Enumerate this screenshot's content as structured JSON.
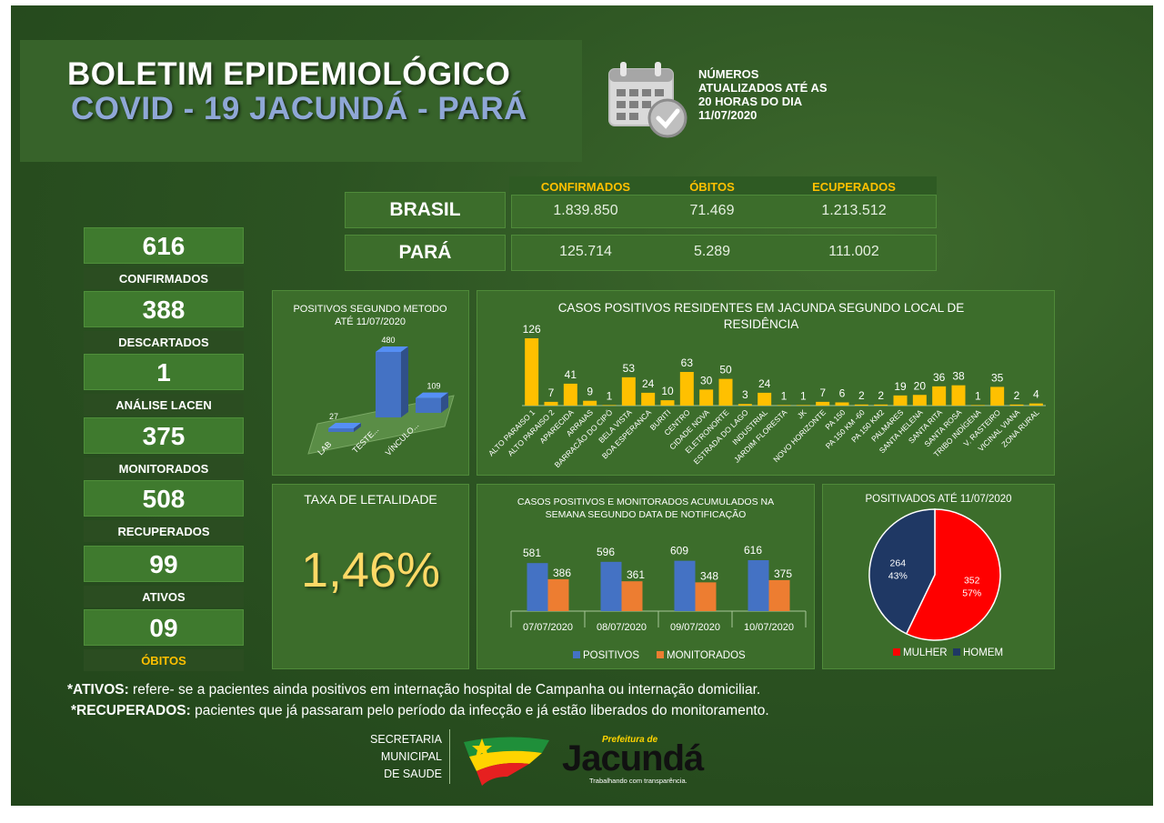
{
  "header": {
    "title_line1": "BOLETIM EPIDEMIOLÓGICO",
    "title_line2": "COVID - 19 JACUNDÁ - PARÁ",
    "calendar_icon": "calendar-check-icon",
    "update_note": [
      "NÚMEROS",
      "ATUALIZADOS ATÉ AS",
      "20 HORAS DO DIA",
      "11/07/2020"
    ]
  },
  "comparison": {
    "columns": [
      "CONFIRMADOS",
      "ÓBITOS",
      "ECUPERADOS"
    ],
    "rows": [
      {
        "name": "BRASIL",
        "values": [
          "1.839.850",
          "71.469",
          "1.213.512"
        ]
      },
      {
        "name": "PARÁ",
        "values": [
          "125.714",
          "5.289",
          "111.002"
        ]
      }
    ]
  },
  "stats": [
    {
      "value": "616",
      "label": "CONFIRMADOS"
    },
    {
      "value": "388",
      "label": "DESCARTADOS"
    },
    {
      "value": "1",
      "label": "ANÁLISE LACEN"
    },
    {
      "value": "375",
      "label": "MONITORADOS"
    },
    {
      "value": "508",
      "label": "RECUPERADOS"
    },
    {
      "value": "99",
      "label": "ATIVOS"
    },
    {
      "value": "09",
      "label": "ÓBITOS"
    }
  ],
  "lethality": {
    "title": "TAXA DE LETALIDADE",
    "value": "1,46%"
  },
  "chart_data": [
    {
      "type": "bar",
      "title": "POSITIVOS SEGUNDO METODO ATÉ 11/07/2020",
      "categories": [
        "LAB",
        "TESTE...",
        "VÍNCULO..."
      ],
      "values": [
        27,
        480,
        109
      ],
      "color": "#4472c4"
    },
    {
      "type": "bar",
      "title": "CASOS POSITIVOS RESIDENTES EM JACUNDA SEGUNDO LOCAL DE RESIDÊNCIA",
      "categories": [
        "ALTO PARAISO 1",
        "ALTO PARAISO 2",
        "APARECIDA",
        "ARRAIAS",
        "BARRACÃO DO CIPÓ",
        "BELA VISTA",
        "BOA ESPERANCA",
        "BURITI",
        "CENTRO",
        "CIDADE NOVA",
        "ELETRONORTE",
        "ESTRADA DO LAGO",
        "INDUSTRIAL",
        "JARDIM FLORESTA",
        "JK",
        "NOVO HORIZONTE",
        "PA 150",
        "PA 150 KM -60",
        "PA 150 KM2",
        "PALMARES",
        "SANTA HELENA",
        "SANTA RITA",
        "SANTA ROSA",
        "TRIBO INDÍGENA",
        "V. RASTEIRO",
        "VICINAL VIANA",
        "ZONA RURAL"
      ],
      "values": [
        126,
        7,
        41,
        9,
        1,
        53,
        24,
        10,
        63,
        30,
        50,
        3,
        24,
        1,
        1,
        7,
        6,
        2,
        2,
        19,
        20,
        36,
        38,
        1,
        35,
        2,
        4
      ],
      "color": "#ffc000"
    },
    {
      "type": "bar",
      "title": "CASOS POSITIVOS E MONITORADOS ACUMULADOS NA SEMANA SEGUNDO DATA DE NOTIFICAÇÃO",
      "categories": [
        "07/07/2020",
        "08/07/2020",
        "09/07/2020",
        "10/07/2020"
      ],
      "series": [
        {
          "name": "POSITIVOS",
          "values": [
            581,
            596,
            609,
            616
          ],
          "color": "#4472c4"
        },
        {
          "name": "MONITORADOS",
          "values": [
            386,
            361,
            348,
            375
          ],
          "color": "#ed7d31"
        }
      ],
      "legend": "bottom"
    },
    {
      "type": "pie",
      "title": "POSITIVADOS ATÉ 11/07/2020",
      "slices": [
        {
          "name": "MULHER",
          "value": 352,
          "percent": "57%",
          "color": "#ff0000"
        },
        {
          "name": "HOMEM",
          "value": 264,
          "percent": "43%",
          "color": "#1f3864"
        }
      ],
      "legend": "bottom"
    }
  ],
  "footnotes": [
    {
      "term": "*ATIVOS:",
      "text": " refere- se a pacientes ainda positivos em internação hospital de Campanha ou internação domiciliar."
    },
    {
      "term": "*RECUPERADOS:",
      "text": "  pacientes que já passaram pelo período da infecção e já estão liberados do monitoramento."
    }
  ],
  "footer": {
    "secretaria": [
      "SECRETARIA",
      "MUNICIPAL",
      "DE SAUDE"
    ],
    "logo_top": "Prefeitura de",
    "logo_main": "Jacundá",
    "logo_tagline": "Trabalhando com transparência."
  }
}
